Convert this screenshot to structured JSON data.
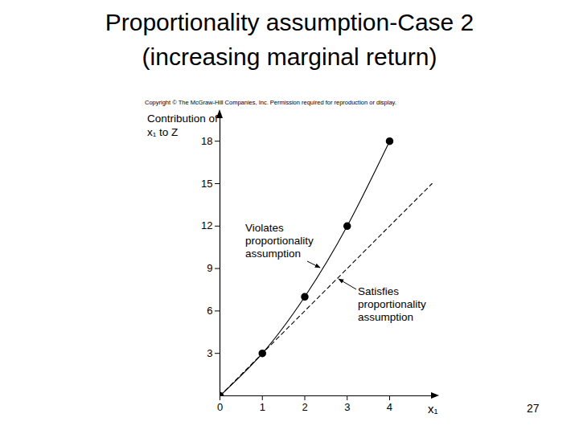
{
  "chart_data": {
    "type": "line",
    "title": "Proportionality assumption-Case 2",
    "subtitle": "(increasing marginal return)",
    "x_label": "x₁",
    "y_label": "Contribution of x₁ to Z",
    "xlim": [
      0,
      5.1
    ],
    "ylim": [
      0,
      20
    ],
    "xticks": [
      0,
      1,
      2,
      3,
      4
    ],
    "yticks": [
      3,
      6,
      9,
      12,
      15,
      18
    ],
    "grid": false,
    "series": [
      {
        "name": "Violates proportionality assumption",
        "color": "#000000",
        "marker": "circle",
        "line_style": "solid",
        "x": [
          0,
          1,
          2,
          3,
          4
        ],
        "values": [
          0,
          3,
          7,
          12,
          18
        ]
      },
      {
        "name": "Satisfies proportionality assumption",
        "color": "#000000",
        "marker": "none",
        "line_style": "dashed",
        "x": [
          0,
          5
        ],
        "values": [
          0,
          15
        ]
      }
    ],
    "annotations": [
      "Copyright © The McGraw-Hill Companies, Inc. Permission required for reproduction or display.",
      "27"
    ]
  }
}
